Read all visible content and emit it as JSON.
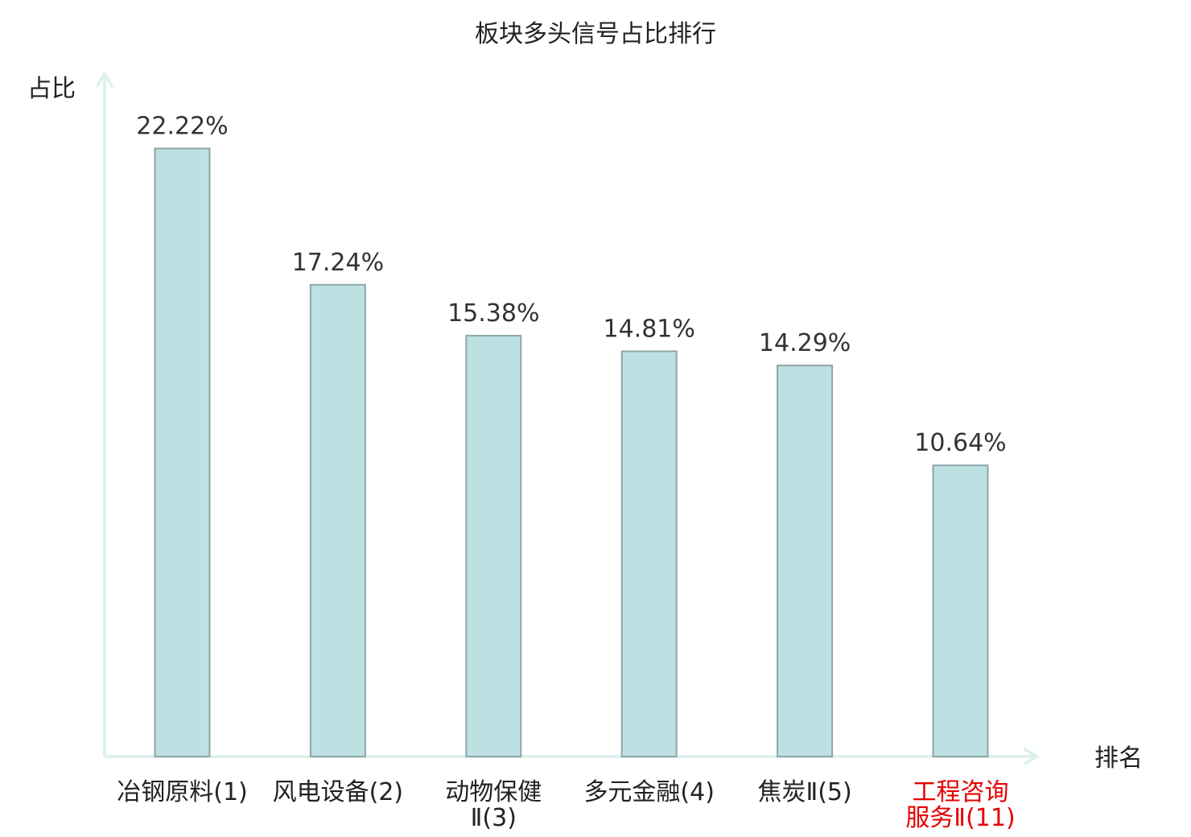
{
  "chart_data": {
    "type": "bar",
    "title": "板块多头信号占比排行",
    "ylabel": "占比",
    "xlabel": "排名",
    "ylim": [
      0,
      25
    ],
    "categories": [
      {
        "lines": [
          "冶钢原料(1)"
        ],
        "highlight": false
      },
      {
        "lines": [
          "风电设备(2)"
        ],
        "highlight": false
      },
      {
        "lines": [
          "动物保健",
          "Ⅱ(3)"
        ],
        "highlight": false
      },
      {
        "lines": [
          "多元金融(4)"
        ],
        "highlight": false
      },
      {
        "lines": [
          "焦炭Ⅱ(5)"
        ],
        "highlight": false
      },
      {
        "lines": [
          "工程咨询",
          "服务Ⅱ(11)"
        ],
        "highlight": true
      }
    ],
    "values": [
      22.22,
      17.24,
      15.38,
      14.81,
      14.29,
      10.64
    ],
    "value_labels": [
      "22.22%",
      "17.24%",
      "15.38%",
      "14.81%",
      "14.29%",
      "10.64%"
    ],
    "colors": {
      "bar_fill": "#bde0e3",
      "bar_stroke": "#8fa6a8",
      "axis": "#dff0ee",
      "highlight_text": "#e60000",
      "normal_text": "#222222"
    }
  }
}
